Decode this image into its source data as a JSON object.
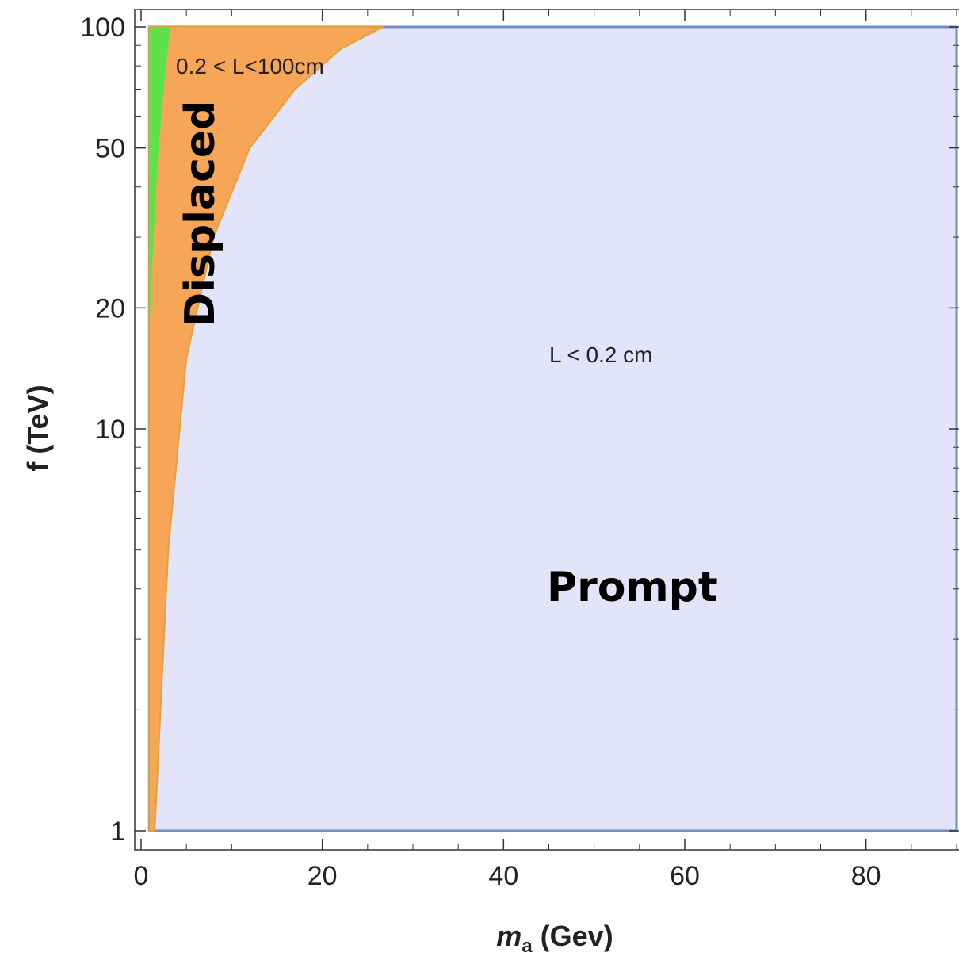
{
  "chart_data": {
    "type": "area",
    "x_axis": {
      "label_main": "m",
      "label_sub": "a",
      "label_rest": " (Gev)",
      "range": [
        0,
        90
      ],
      "ticks": [
        0,
        20,
        40,
        60,
        80
      ],
      "tick_labels": [
        "0",
        "20",
        "40",
        "60",
        "80"
      ],
      "minor_step": 5
    },
    "y_axis": {
      "label": "f (TeV)",
      "scale": "log",
      "range": [
        1,
        100
      ],
      "ticks": [
        1,
        10,
        20,
        50,
        100
      ],
      "tick_labels": [
        "1",
        "10",
        "20",
        "50",
        "100"
      ]
    },
    "regions": [
      {
        "label": "Prompt",
        "sublabel": "L < 0.2 cm",
        "color": "#e3e3fa",
        "edge_color": "#6f8fc9",
        "x_range": [
          0.9,
          90
        ],
        "y_range": [
          1,
          100
        ]
      },
      {
        "label": "Displaced",
        "sublabel": "0.2 < L<100cm",
        "color": "#f7a557",
        "edge_color": "#e0a33c",
        "boundary": {
          "x": [
            1.5,
            3,
            5,
            8,
            12,
            17,
            22,
            26.7
          ],
          "f": [
            1,
            5,
            15,
            30,
            50,
            70,
            88,
            100
          ]
        }
      },
      {
        "label": "",
        "color": "#5de24a",
        "boundary": {
          "x": [
            0.9,
            1.2,
            1.8,
            2.5,
            3.2
          ],
          "f": [
            17,
            25,
            45,
            70,
            100
          ]
        }
      }
    ]
  }
}
